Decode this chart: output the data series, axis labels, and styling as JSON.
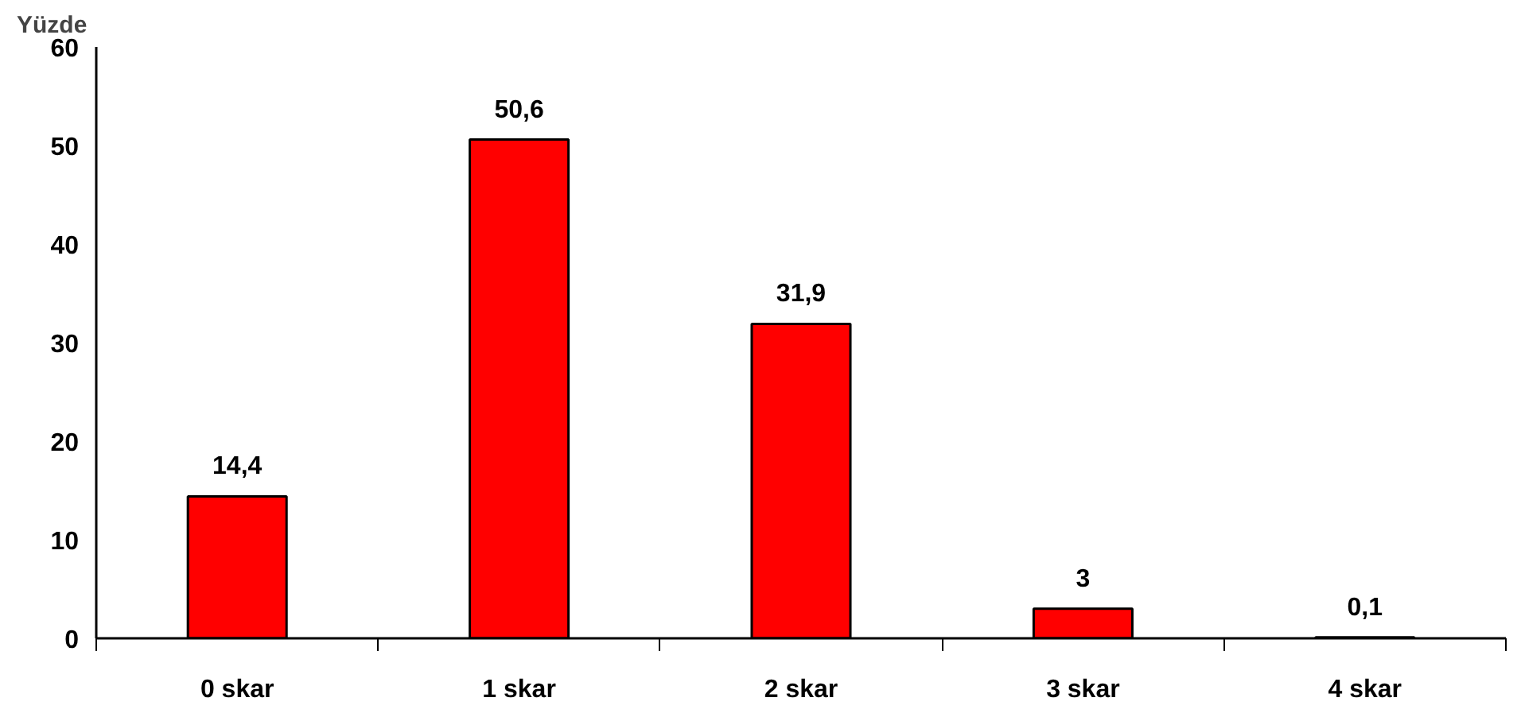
{
  "chart_data": {
    "type": "bar",
    "ylabel": "Yüzde",
    "categories": [
      "0 skar",
      "1 skar",
      "2 skar",
      "3 skar",
      "4 skar"
    ],
    "values": [
      14.4,
      50.6,
      31.9,
      3,
      0.1
    ],
    "value_labels": [
      "14,4",
      "50,6",
      "31,9",
      "3",
      "0,1"
    ],
    "color": "#ff0000",
    "ylim": [
      0,
      60
    ],
    "yticks": [
      0,
      10,
      20,
      30,
      40,
      50,
      60
    ],
    "grid": false
  }
}
